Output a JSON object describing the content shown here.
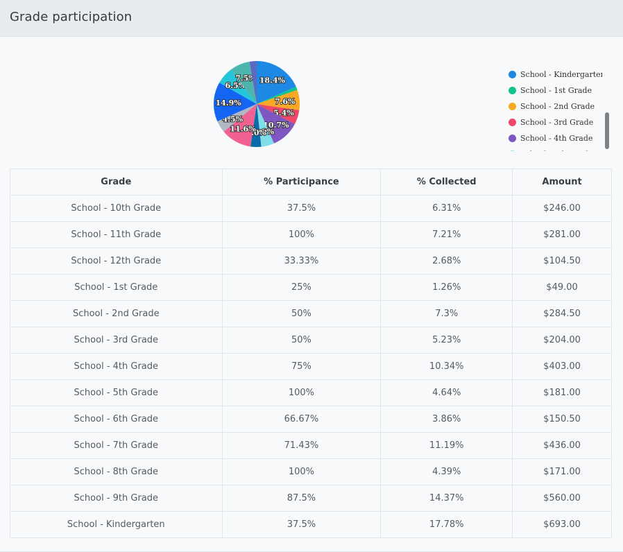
{
  "header": {
    "title": "Grade participation"
  },
  "chart_data": {
    "type": "pie",
    "slices": [
      {
        "name": "School - Kindergarten",
        "value": 18.4,
        "label": "18.4%",
        "color": "#1e88e5"
      },
      {
        "name": "School - 1st Grade",
        "value": 1.3,
        "label": "",
        "color": "#12c48b"
      },
      {
        "name": "School - 2nd Grade",
        "value": 7.6,
        "label": "7.6%",
        "color": "#f9a825"
      },
      {
        "name": "School - 3rd Grade",
        "value": 5.4,
        "label": "5.4%",
        "color": "#ef4767"
      },
      {
        "name": "School - 4th Grade",
        "value": 10.7,
        "label": "10.7%",
        "color": "#7e57c2"
      },
      {
        "name": "School - 5th Grade",
        "value": 4.9,
        "label": "4.9%",
        "color": "#80deea"
      },
      {
        "name": "School - 6th Grade",
        "value": 4.0,
        "label": "4.0%",
        "color": "#0b6aa8"
      },
      {
        "name": "School - 7th Grade",
        "value": 11.6,
        "label": "11.6%",
        "color": "#f06292"
      },
      {
        "name": "School - 8th Grade",
        "value": 4.5,
        "label": "4.5%",
        "color": "#b0b8c4"
      },
      {
        "name": "School - 9th Grade",
        "value": 14.9,
        "label": "14.9%",
        "color": "#1565f5"
      },
      {
        "name": "School - 10th Grade",
        "value": 6.5,
        "label": "6.5%",
        "color": "#26c6da"
      },
      {
        "name": "School - 11th Grade",
        "value": 7.5,
        "label": "7.5%",
        "color": "#4db6ac"
      },
      {
        "name": "School - 12th Grade",
        "value": 2.7,
        "label": "",
        "color": "#5c6bc0"
      }
    ],
    "legend_position": "right",
    "legend_visible": [
      "School - Kindergarten",
      "School - 1st Grade",
      "School - 2nd Grade",
      "School - 3rd Grade",
      "School - 4th Grade",
      "School - 5th Grade"
    ]
  },
  "table": {
    "headers": [
      "Grade",
      "% Participance",
      "% Collected",
      "Amount"
    ],
    "rows": [
      [
        "School - 10th Grade",
        "37.5%",
        "6.31%",
        "$246.00"
      ],
      [
        "School - 11th Grade",
        "100%",
        "7.21%",
        "$281.00"
      ],
      [
        "School - 12th Grade",
        "33.33%",
        "2.68%",
        "$104.50"
      ],
      [
        "School - 1st Grade",
        "25%",
        "1.26%",
        "$49.00"
      ],
      [
        "School - 2nd Grade",
        "50%",
        "7.3%",
        "$284.50"
      ],
      [
        "School - 3rd Grade",
        "50%",
        "5.23%",
        "$204.00"
      ],
      [
        "School - 4th Grade",
        "75%",
        "10.34%",
        "$403.00"
      ],
      [
        "School - 5th Grade",
        "100%",
        "4.64%",
        "$181.00"
      ],
      [
        "School - 6th Grade",
        "66.67%",
        "3.86%",
        "$150.50"
      ],
      [
        "School - 7th Grade",
        "71.43%",
        "11.19%",
        "$436.00"
      ],
      [
        "School - 8th Grade",
        "100%",
        "4.39%",
        "$171.00"
      ],
      [
        "School - 9th Grade",
        "87.5%",
        "14.37%",
        "$560.00"
      ],
      [
        "School - Kindergarten",
        "37.5%",
        "17.78%",
        "$693.00"
      ]
    ]
  }
}
